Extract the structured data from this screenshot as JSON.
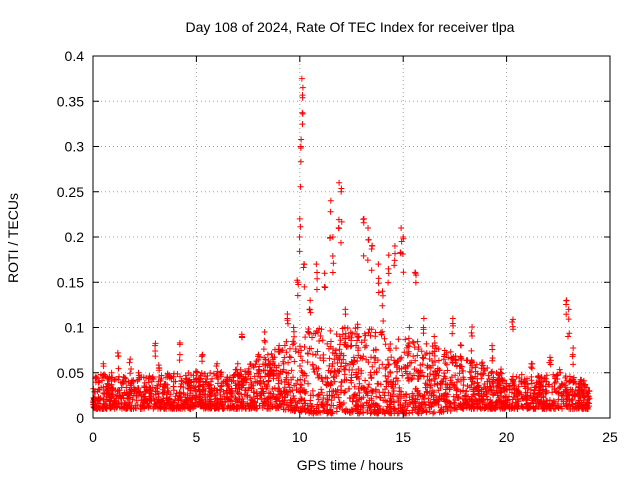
{
  "chart_data": {
    "type": "scatter",
    "title": "Day 108 of 2024, Rate Of TEC Index for receiver tlpa",
    "xlabel": "GPS time / hours",
    "ylabel": "ROTI / TECUs",
    "xlim": [
      0,
      25
    ],
    "ylim": [
      0,
      0.4
    ],
    "grid": true,
    "marker": "+",
    "series_color": "#ff0000",
    "x_ticks": [
      0,
      5,
      10,
      15,
      20,
      25
    ],
    "x_tick_labels": [
      "0",
      "5",
      "10",
      "15",
      "20",
      "25"
    ],
    "y_ticks": [
      0,
      0.05,
      0.1,
      0.15,
      0.2,
      0.25,
      0.3,
      0.35,
      0.4
    ],
    "y_tick_labels": [
      "0",
      "0.05",
      "0.1",
      "0.15",
      "0.2",
      "0.25",
      "0.3",
      "0.35",
      "0.4"
    ],
    "series": [
      {
        "name": "ROTI",
        "points": [
          [
            0.1,
            0.02
          ],
          [
            0.3,
            0.04
          ],
          [
            0.5,
            0.06
          ],
          [
            0.7,
            0.03
          ],
          [
            0.9,
            0.05
          ],
          [
            1.2,
            0.072
          ],
          [
            1.5,
            0.04
          ],
          [
            1.8,
            0.065
          ],
          [
            2.2,
            0.05
          ],
          [
            2.6,
            0.03
          ],
          [
            3.0,
            0.08
          ],
          [
            3.2,
            0.055
          ],
          [
            3.6,
            0.03
          ],
          [
            4.2,
            0.083
          ],
          [
            4.6,
            0.04
          ],
          [
            5.0,
            0.05
          ],
          [
            5.3,
            0.07
          ],
          [
            5.7,
            0.04
          ],
          [
            6.0,
            0.06
          ],
          [
            6.5,
            0.045
          ],
          [
            7.0,
            0.06
          ],
          [
            7.2,
            0.09
          ],
          [
            7.5,
            0.05
          ],
          [
            8.0,
            0.07
          ],
          [
            8.3,
            0.095
          ],
          [
            8.7,
            0.06
          ],
          [
            9.0,
            0.08
          ],
          [
            9.4,
            0.11
          ],
          [
            9.7,
            0.1
          ],
          [
            9.9,
            0.15
          ],
          [
            10.0,
            0.22
          ],
          [
            10.05,
            0.3
          ],
          [
            10.1,
            0.375
          ],
          [
            10.15,
            0.365
          ],
          [
            10.2,
            0.17
          ],
          [
            10.5,
            0.13
          ],
          [
            10.8,
            0.17
          ],
          [
            11.2,
            0.16
          ],
          [
            11.5,
            0.24
          ],
          [
            11.6,
            0.2
          ],
          [
            11.9,
            0.26
          ],
          [
            12.0,
            0.25
          ],
          [
            12.2,
            0.12
          ],
          [
            12.5,
            0.08
          ],
          [
            12.8,
            0.1
          ],
          [
            13.1,
            0.22
          ],
          [
            13.3,
            0.21
          ],
          [
            13.5,
            0.19
          ],
          [
            13.8,
            0.17
          ],
          [
            14.0,
            0.14
          ],
          [
            14.3,
            0.18
          ],
          [
            14.6,
            0.19
          ],
          [
            14.9,
            0.21
          ],
          [
            15.0,
            0.2
          ],
          [
            15.3,
            0.1
          ],
          [
            15.6,
            0.16
          ],
          [
            16.0,
            0.11
          ],
          [
            16.5,
            0.09
          ],
          [
            17.0,
            0.07
          ],
          [
            17.4,
            0.11
          ],
          [
            17.8,
            0.08
          ],
          [
            18.3,
            0.094
          ],
          [
            18.8,
            0.06
          ],
          [
            19.3,
            0.08
          ],
          [
            19.7,
            0.05
          ],
          [
            20.3,
            0.101
          ],
          [
            20.7,
            0.04
          ],
          [
            21.2,
            0.06
          ],
          [
            21.6,
            0.04
          ],
          [
            22.1,
            0.067
          ],
          [
            22.6,
            0.05
          ],
          [
            22.9,
            0.13
          ],
          [
            23.0,
            0.12
          ],
          [
            23.2,
            0.07
          ],
          [
            23.6,
            0.04
          ],
          [
            24.0,
            0.03
          ]
        ]
      }
    ],
    "noise_band": {
      "description": "dense low-level ROTI values throughout the day",
      "segments": [
        [
          0,
          0.01,
          0.05
        ],
        [
          2,
          0.01,
          0.045
        ],
        [
          4,
          0.01,
          0.05
        ],
        [
          6,
          0.01,
          0.05
        ],
        [
          7.5,
          0.01,
          0.06
        ],
        [
          9,
          0.01,
          0.08
        ],
        [
          10.5,
          0.005,
          0.1
        ],
        [
          12,
          0.005,
          0.1
        ],
        [
          13.5,
          0.005,
          0.1
        ],
        [
          15,
          0.005,
          0.09
        ],
        [
          16.5,
          0.005,
          0.08
        ],
        [
          18,
          0.01,
          0.07
        ],
        [
          19.5,
          0.01,
          0.05
        ],
        [
          21,
          0.01,
          0.045
        ],
        [
          22.5,
          0.01,
          0.05
        ],
        [
          24,
          0.01,
          0.04
        ]
      ]
    }
  }
}
